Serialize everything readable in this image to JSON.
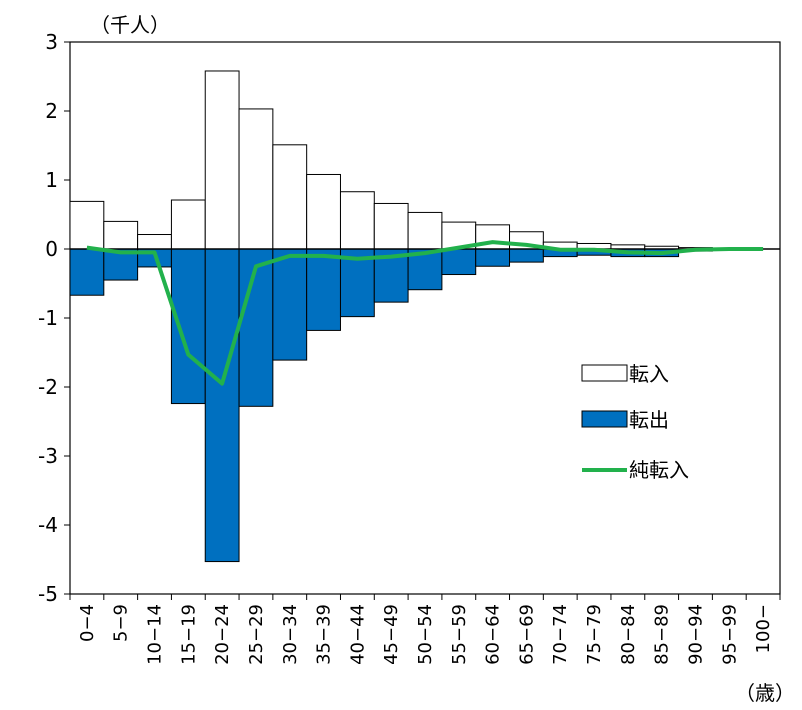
{
  "chart_data": {
    "type": "bar",
    "y_unit_label": "（千人）",
    "x_unit_label": "（歳）",
    "ylim": [
      -5,
      3
    ],
    "yticks": [
      3,
      2,
      1,
      0,
      -1,
      -2,
      -3,
      -4,
      -5
    ],
    "categories": [
      "0−4",
      "5−9",
      "10−14",
      "15−19",
      "20−24",
      "25−29",
      "30−34",
      "35−39",
      "40−44",
      "45−49",
      "50−54",
      "55−59",
      "60−64",
      "65−69",
      "70−74",
      "75−79",
      "80−84",
      "85−89",
      "90−94",
      "95−99",
      "100−"
    ],
    "series": [
      {
        "name": "転入",
        "kind": "bar",
        "color": "#ffffff",
        "values": [
          0.69,
          0.4,
          0.21,
          0.71,
          2.58,
          2.03,
          1.51,
          1.08,
          0.83,
          0.66,
          0.53,
          0.39,
          0.35,
          0.25,
          0.1,
          0.08,
          0.06,
          0.04,
          0.02,
          0.01,
          0.0
        ]
      },
      {
        "name": "転出",
        "kind": "bar",
        "color": "#0070c0",
        "values": [
          -0.67,
          -0.45,
          -0.26,
          -2.24,
          -4.53,
          -2.28,
          -1.61,
          -1.18,
          -0.98,
          -0.77,
          -0.59,
          -0.37,
          -0.25,
          -0.19,
          -0.11,
          -0.09,
          -0.11,
          -0.11,
          -0.03,
          -0.01,
          0.0
        ]
      },
      {
        "name": "純転入",
        "kind": "line",
        "color": "#22b14c",
        "values": [
          0.02,
          -0.05,
          -0.05,
          -1.53,
          -1.95,
          -0.25,
          -0.1,
          -0.1,
          -0.14,
          -0.11,
          -0.06,
          0.02,
          0.1,
          0.06,
          -0.01,
          -0.01,
          -0.05,
          -0.06,
          -0.01,
          0.0,
          0.0
        ]
      }
    ],
    "legend_position": "right-center",
    "grid": false
  }
}
